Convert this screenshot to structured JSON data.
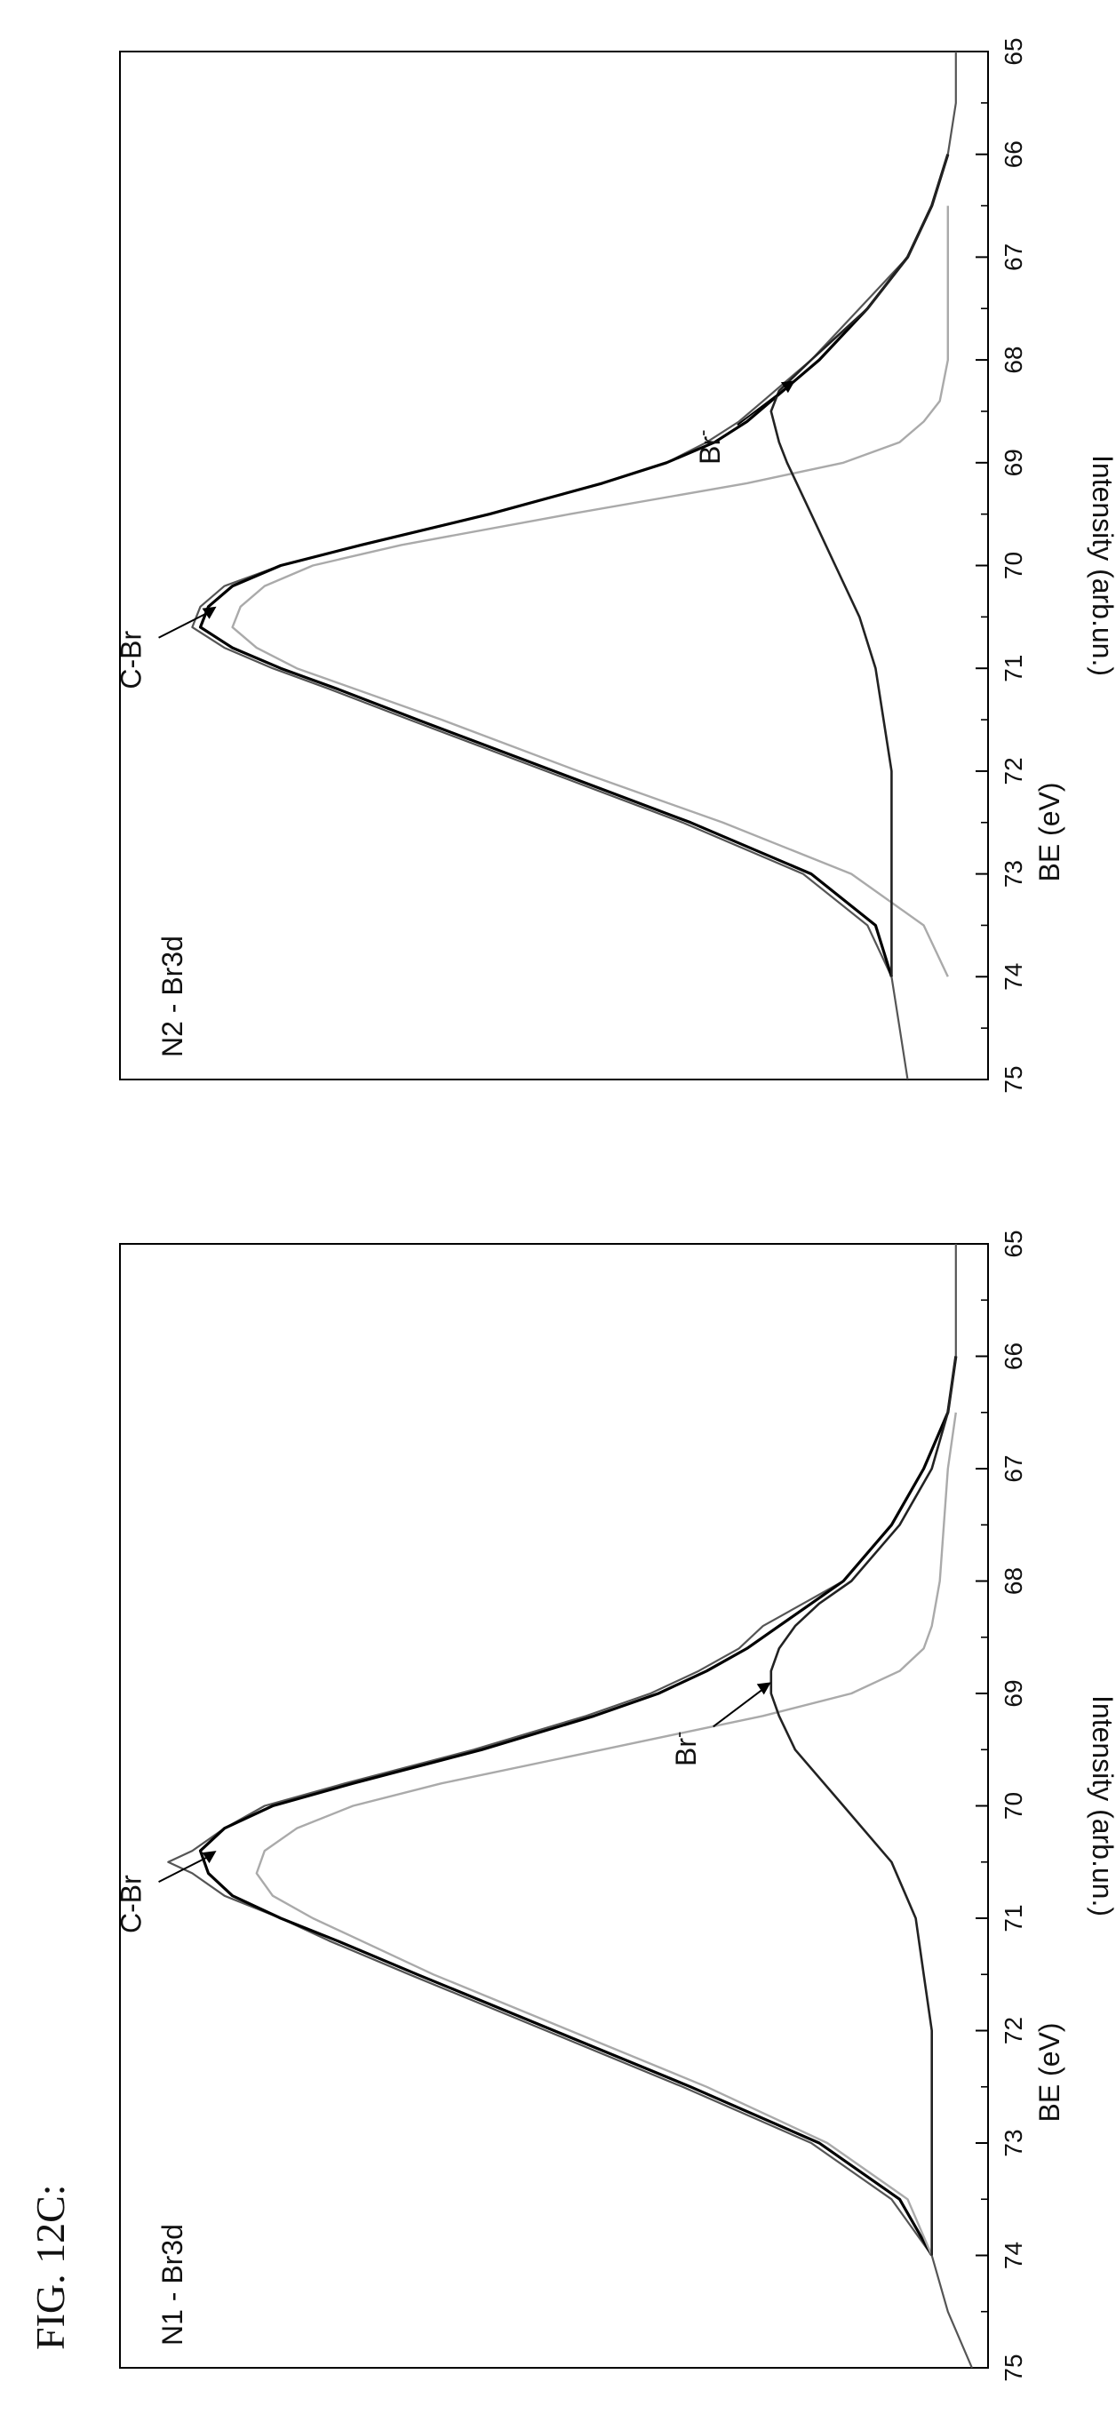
{
  "figure_label": "FIG. 12C:",
  "chart_data": [
    {
      "type": "line",
      "panel_label": "N1 - Br3d",
      "xlabel": "BE (eV)",
      "ylabel": "Intensity (arb.un.)",
      "x_ticks": [
        "75",
        "74",
        "73",
        "72",
        "71",
        "70",
        "69",
        "68",
        "67",
        "66",
        "65"
      ],
      "xlim": [
        75,
        65
      ],
      "ylim": [
        0,
        1.08
      ],
      "x_direction": "reversed",
      "grid": false,
      "series": [
        {
          "style": "noisy-data",
          "x": [
            75.0,
            74.5,
            74.0,
            73.5,
            73.0,
            72.5,
            72.0,
            71.5,
            71.2,
            71.0,
            70.8,
            70.6,
            70.5,
            70.4,
            70.2,
            70.0,
            69.8,
            69.5,
            69.2,
            69.0,
            68.8,
            68.6,
            68.4,
            68.2,
            68.0,
            67.5,
            67.0,
            66.5,
            66.0,
            65.5,
            65.0
          ],
          "values": [
            0.02,
            0.05,
            0.07,
            0.12,
            0.22,
            0.38,
            0.55,
            0.72,
            0.82,
            0.88,
            0.95,
            0.99,
            1.02,
            0.99,
            0.95,
            0.9,
            0.8,
            0.64,
            0.5,
            0.42,
            0.36,
            0.31,
            0.28,
            0.23,
            0.18,
            0.12,
            0.08,
            0.05,
            0.04,
            0.04,
            0.04
          ]
        },
        {
          "style": "envelope",
          "x": [
            74.0,
            73.5,
            73.0,
            72.5,
            72.0,
            71.5,
            71.2,
            71.0,
            70.8,
            70.6,
            70.4,
            70.2,
            70.0,
            69.8,
            69.5,
            69.2,
            69.0,
            68.8,
            68.6,
            68.4,
            68.2,
            68.0,
            67.5,
            67.0,
            66.5,
            66.0
          ],
          "values": [
            0.07,
            0.11,
            0.21,
            0.37,
            0.54,
            0.71,
            0.81,
            0.88,
            0.94,
            0.97,
            0.98,
            0.95,
            0.89,
            0.79,
            0.63,
            0.49,
            0.41,
            0.35,
            0.3,
            0.26,
            0.22,
            0.18,
            0.12,
            0.08,
            0.05,
            0.04
          ]
        },
        {
          "style": "C-Br-component",
          "x": [
            74.0,
            73.5,
            73.0,
            72.5,
            72.0,
            71.5,
            71.0,
            70.8,
            70.6,
            70.4,
            70.2,
            70.0,
            69.8,
            69.5,
            69.2,
            69.0,
            68.8,
            68.6,
            68.4,
            68.0,
            67.0,
            66.5
          ],
          "values": [
            0.07,
            0.1,
            0.2,
            0.35,
            0.52,
            0.69,
            0.84,
            0.89,
            0.91,
            0.9,
            0.86,
            0.79,
            0.68,
            0.48,
            0.28,
            0.17,
            0.11,
            0.08,
            0.07,
            0.06,
            0.05,
            0.04
          ]
        },
        {
          "style": "Br-component",
          "x": [
            74.0,
            73.0,
            72.5,
            72.0,
            71.5,
            71.0,
            70.5,
            70.0,
            69.5,
            69.2,
            69.0,
            68.8,
            68.6,
            68.4,
            68.2,
            68.0,
            67.5,
            67.0,
            66.5,
            66.0
          ],
          "values": [
            0.07,
            0.07,
            0.07,
            0.07,
            0.08,
            0.09,
            0.12,
            0.18,
            0.24,
            0.26,
            0.27,
            0.27,
            0.26,
            0.24,
            0.21,
            0.17,
            0.11,
            0.07,
            0.05,
            0.04
          ]
        }
      ],
      "annotations": [
        {
          "text": "C-Br",
          "x": 70.4,
          "y": 0.96
        },
        {
          "text": "Br",
          "superscript": "-",
          "x": 68.9,
          "y": 0.27
        }
      ]
    },
    {
      "type": "line",
      "panel_label": "N2 - Br3d",
      "xlabel": "BE (eV)",
      "ylabel": "Intensity (arb.un.)",
      "x_ticks": [
        "75",
        "74",
        "73",
        "72",
        "71",
        "70",
        "69",
        "68",
        "67",
        "66",
        "65"
      ],
      "xlim": [
        75,
        65
      ],
      "ylim": [
        0,
        1.08
      ],
      "x_direction": "reversed",
      "grid": false,
      "series": [
        {
          "style": "noisy-data",
          "x": [
            75.0,
            74.5,
            74.0,
            73.5,
            73.0,
            72.5,
            72.0,
            71.5,
            71.2,
            71.0,
            70.8,
            70.6,
            70.4,
            70.2,
            70.0,
            69.8,
            69.5,
            69.2,
            69.0,
            68.8,
            68.6,
            68.4,
            68.2,
            68.0,
            67.5,
            67.0,
            66.5,
            66.0,
            65.5,
            65.0
          ],
          "values": [
            0.1,
            0.11,
            0.12,
            0.15,
            0.23,
            0.38,
            0.55,
            0.72,
            0.82,
            0.89,
            0.95,
            0.99,
            0.98,
            0.95,
            0.88,
            0.78,
            0.62,
            0.48,
            0.4,
            0.35,
            0.31,
            0.28,
            0.25,
            0.22,
            0.16,
            0.1,
            0.07,
            0.05,
            0.04,
            0.04
          ]
        },
        {
          "style": "envelope",
          "x": [
            74.0,
            73.5,
            73.0,
            72.5,
            72.0,
            71.5,
            71.2,
            71.0,
            70.8,
            70.6,
            70.4,
            70.2,
            70.0,
            69.8,
            69.5,
            69.2,
            69.0,
            68.8,
            68.6,
            68.4,
            68.2,
            68.0,
            67.5,
            67.0,
            66.5,
            66.0
          ],
          "values": [
            0.12,
            0.14,
            0.22,
            0.37,
            0.54,
            0.71,
            0.81,
            0.88,
            0.94,
            0.98,
            0.97,
            0.94,
            0.88,
            0.78,
            0.62,
            0.48,
            0.4,
            0.34,
            0.3,
            0.27,
            0.24,
            0.21,
            0.15,
            0.1,
            0.07,
            0.05
          ]
        },
        {
          "style": "C-Br-component",
          "x": [
            74.0,
            73.5,
            73.0,
            72.5,
            72.0,
            71.5,
            71.0,
            70.8,
            70.6,
            70.4,
            70.2,
            70.0,
            69.8,
            69.5,
            69.2,
            69.0,
            68.8,
            68.6,
            68.4,
            68.0,
            67.0,
            66.5
          ],
          "values": [
            0.05,
            0.08,
            0.17,
            0.33,
            0.51,
            0.68,
            0.86,
            0.91,
            0.94,
            0.93,
            0.9,
            0.84,
            0.73,
            0.52,
            0.3,
            0.18,
            0.11,
            0.08,
            0.06,
            0.05,
            0.05,
            0.05
          ]
        },
        {
          "style": "Br-component",
          "x": [
            74.0,
            73.0,
            72.5,
            72.0,
            71.5,
            71.0,
            70.5,
            70.0,
            69.5,
            69.0,
            68.8,
            68.5,
            68.3,
            68.0,
            67.5,
            67.0,
            66.5,
            66.0
          ],
          "values": [
            0.12,
            0.12,
            0.12,
            0.12,
            0.13,
            0.14,
            0.16,
            0.19,
            0.22,
            0.25,
            0.26,
            0.27,
            0.26,
            0.22,
            0.15,
            0.1,
            0.07,
            0.05
          ]
        }
      ],
      "annotations": [
        {
          "text": "C-Br",
          "x": 70.4,
          "y": 0.96
        },
        {
          "text": "Br",
          "superscript": "-",
          "x": 68.2,
          "y": 0.24
        }
      ]
    }
  ]
}
